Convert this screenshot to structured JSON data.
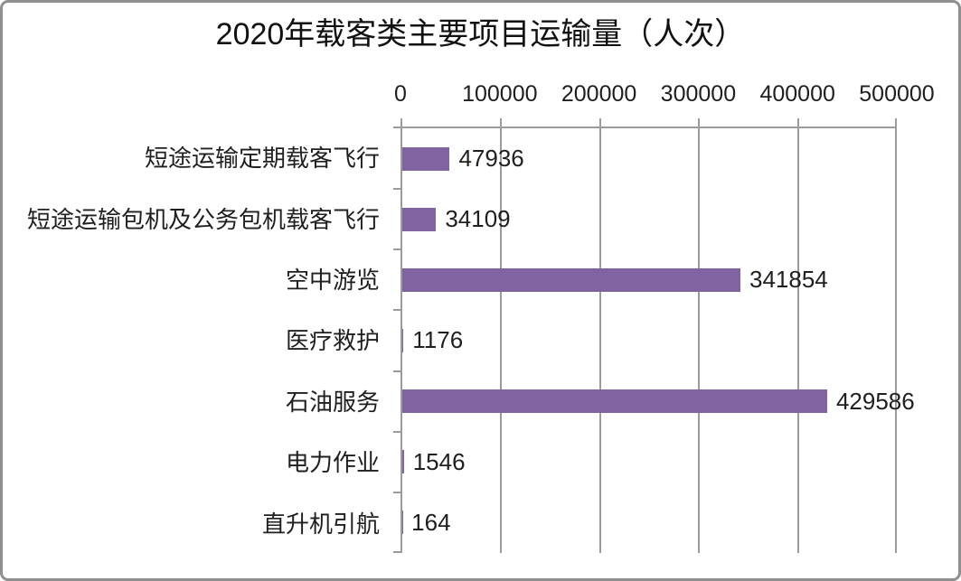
{
  "chart_title": "2020年载客类主要项目运输量（人次）",
  "chart_data": {
    "type": "bar",
    "orientation": "horizontal",
    "title": "2020年载客类主要项目运输量（人次）",
    "categories": [
      "短途运输定期载客飞行",
      "短途运输包机及公务包机载客飞行",
      "空中游览",
      "医疗救护",
      "石油服务",
      "电力作业",
      "直升机引航"
    ],
    "values": [
      47936,
      34109,
      341854,
      1176,
      429586,
      1546,
      164
    ],
    "value_labels": [
      "47936",
      "34109",
      "341854",
      "1176",
      "429586",
      "1546",
      "164"
    ],
    "x_ticks": [
      "0",
      "100000",
      "200000",
      "300000",
      "400000",
      "500000"
    ],
    "xlim": [
      0,
      500000
    ],
    "xlabel": "",
    "ylabel": "",
    "grid": true,
    "legend": false,
    "bar_color": "#8064A2",
    "gridline_color": "#9b9b9b",
    "frame_border_color": "#8f8f8f",
    "text_color": "#1f1f1f"
  }
}
